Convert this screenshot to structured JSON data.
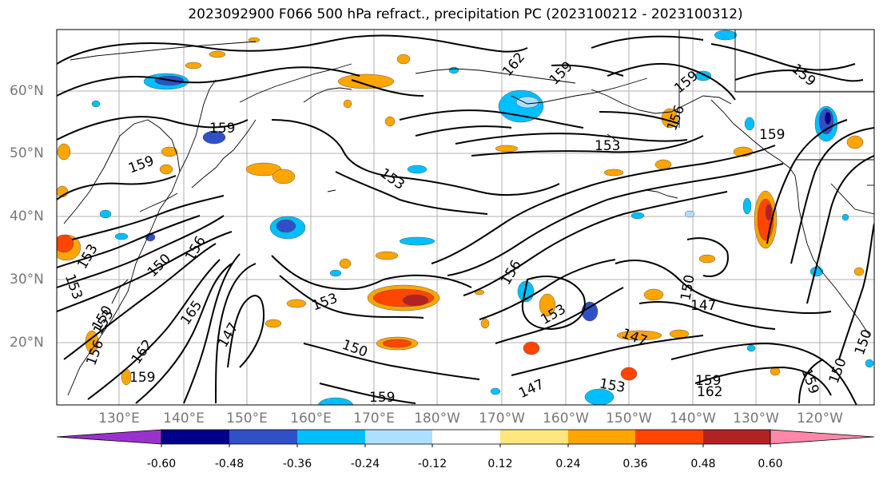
{
  "title": "2023092900 F066 500 hPa refract., precipitation PC (2023100212 - 2023100312)",
  "lat_labels": [
    {
      "text": "60°N"
    },
    {
      "text": "50°N"
    },
    {
      "text": "40°N"
    },
    {
      "text": "30°N"
    },
    {
      "text": "20°N"
    }
  ],
  "lon_labels": [
    {
      "text": "130°E"
    },
    {
      "text": "140°E"
    },
    {
      "text": "150°E"
    },
    {
      "text": "160°E"
    },
    {
      "text": "170°E"
    },
    {
      "text": "180°W"
    },
    {
      "text": "170°W"
    },
    {
      "text": "160°W"
    },
    {
      "text": "150°W"
    },
    {
      "text": "140°W"
    },
    {
      "text": "130°W"
    },
    {
      "text": "120°W"
    }
  ],
  "colorbar": {
    "colors": [
      "#9932CC",
      "#00008B",
      "#3050C8",
      "#00BFFF",
      "#ADDFFF",
      "#FFFFFF",
      "#FFE680",
      "#FFA500",
      "#FF4500",
      "#B22222",
      "#FF88AA"
    ],
    "tick_labels": [
      "-0.60",
      "-0.48",
      "-0.36",
      "-0.24",
      "-0.12",
      "0.12",
      "0.24",
      "0.36",
      "0.48",
      "0.60"
    ]
  },
  "contour_labels": [
    "162",
    "159",
    "159",
    "156",
    "159",
    "159",
    "153",
    "159",
    "153",
    "156",
    "159",
    "150",
    "153",
    "165",
    "162",
    "147",
    "153",
    "150",
    "156",
    "153",
    "150",
    "147",
    "147",
    "153",
    "159",
    "162",
    "159",
    "150",
    "150",
    "153",
    "153",
    "147",
    "156",
    "159",
    "150",
    "159"
  ]
}
